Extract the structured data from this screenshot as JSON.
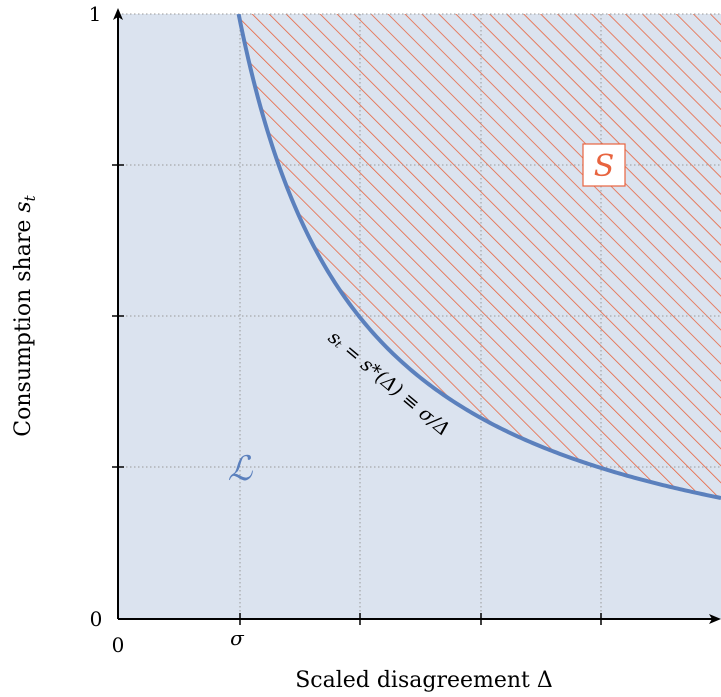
{
  "axes": {
    "xlabel_text": "Scaled disagreement ",
    "xlabel_symbol": "Δ",
    "ylabel_text": "Consumption share ",
    "ylabel_symbol": "s",
    "ylabel_subscript": "t",
    "x_tick_zero": "0",
    "x_tick_sigma": "σ",
    "y_tick_zero": "0",
    "y_tick_one": "1"
  },
  "regions": {
    "lower_label": "ℒ",
    "upper_label": "S"
  },
  "curve": {
    "label": "sₜ = s*(Δ) ≡ σ/Δ"
  },
  "colors": {
    "lower_fill": "#dbe3ef",
    "curve": "#5b80bd",
    "hatch": "#e8643f",
    "grid": "#9a9a9a"
  },
  "chart_data": {
    "type": "region-diagram",
    "function": "s = sigma / Delta",
    "sigma": 1,
    "xlim": [
      0,
      5
    ],
    "ylim": [
      0,
      1
    ],
    "x_gridlines": [
      1,
      2,
      3,
      4
    ],
    "y_gridlines": [
      0.25,
      0.5,
      0.75,
      1
    ],
    "regions": [
      "lower region below curve",
      "upper region above curve (hatched)"
    ]
  }
}
